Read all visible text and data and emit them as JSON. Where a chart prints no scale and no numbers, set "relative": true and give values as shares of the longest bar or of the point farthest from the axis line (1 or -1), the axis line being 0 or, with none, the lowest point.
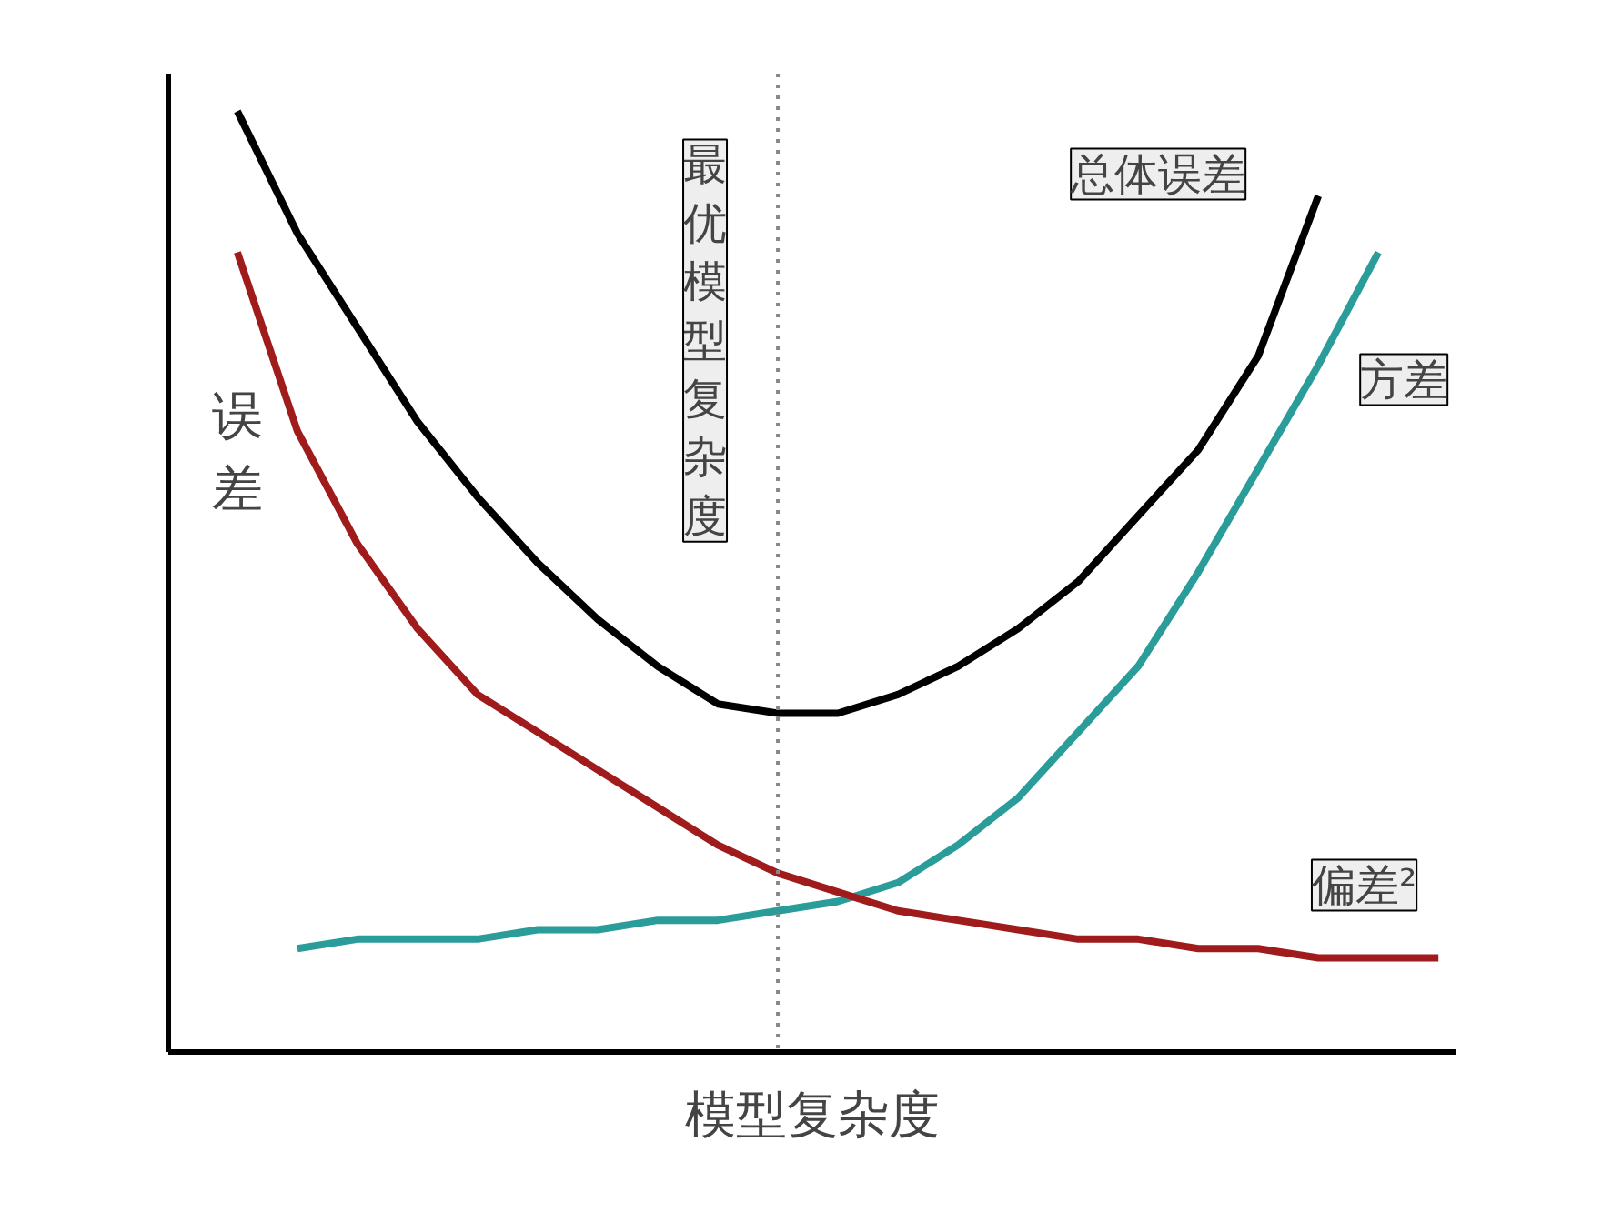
{
  "chart_data": {
    "type": "line",
    "relative": true,
    "xlabel": "模型复杂度",
    "ylabel": "误差",
    "categories": [
      null,
      null,
      null,
      null,
      null,
      null,
      null,
      null,
      null,
      null,
      null,
      null,
      null,
      null,
      null,
      null,
      null,
      null,
      null,
      null,
      null
    ],
    "marker": "none",
    "line_style": "solid",
    "series": [
      {
        "name": "总体误差",
        "color": "#000000",
        "values": [
          1.0,
          0.87,
          0.77,
          0.67,
          0.59,
          0.52,
          0.46,
          0.41,
          0.37,
          0.36,
          0.36,
          0.38,
          0.41,
          0.45,
          0.5,
          0.57,
          0.64,
          0.74,
          0.91,
          null,
          null
        ]
      },
      {
        "name": "方差",
        "color": "#2a9d9a",
        "values": [
          null,
          0.11,
          0.12,
          0.12,
          0.12,
          0.13,
          0.13,
          0.14,
          0.14,
          0.15,
          0.16,
          0.18,
          0.22,
          0.27,
          0.34,
          0.41,
          0.51,
          0.62,
          0.73,
          0.85,
          null
        ]
      },
      {
        "name": "偏差²",
        "color": "#a01c1c",
        "values": [
          0.85,
          0.66,
          0.54,
          0.45,
          0.38,
          0.34,
          0.3,
          0.26,
          0.22,
          0.19,
          0.17,
          0.15,
          0.14,
          0.13,
          0.12,
          0.12,
          0.11,
          0.11,
          0.1,
          0.1,
          0.1
        ]
      }
    ],
    "annotations": [
      "最优模型复杂度"
    ]
  }
}
